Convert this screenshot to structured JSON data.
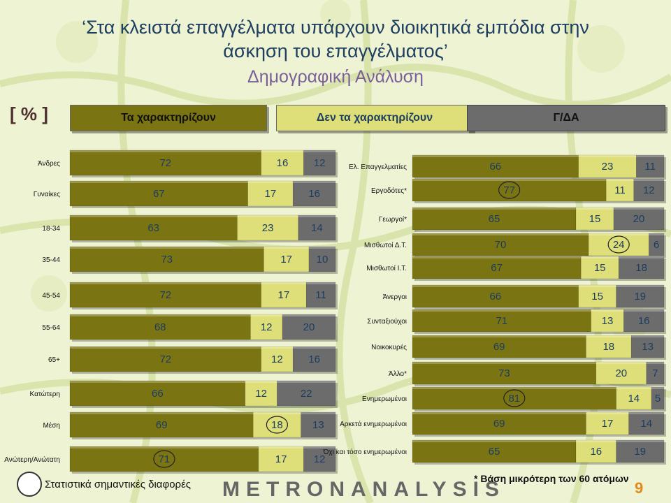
{
  "title": {
    "line1": "‘Στα κλειστά επαγγέλματα υπάρχουν διοικητικά εμπόδια στην",
    "line2": "άσκηση του επαγγέλματος’",
    "subtitle": "Δημογραφική Ανάλυση"
  },
  "percent_label": "[ % ]",
  "legend": {
    "a": "Τα χαρακτηρίζουν",
    "b": "Δεν τα χαρακτηρίζουν",
    "c": "Γ/ΔΑ"
  },
  "colors": {
    "series_a": "#7b7412",
    "series_b": "#dedf78",
    "series_c": "#6c6c6c",
    "value_text": "#1c3c61",
    "page_number": "#e08a1c"
  },
  "stat_legend": "Στατιστικά σημαντικές διαφορές",
  "logo": "METRONANALYSIS",
  "footnote": "* Βάση μικρότερη των 60 ατόμων",
  "page_number": "9",
  "chart_data": [
    {
      "type": "bar",
      "orientation": "horizontal",
      "stacked": true,
      "series": [
        "Τα χαρακτηρίζουν",
        "Δεν τα χαρακτηρίζουν",
        "Γ/ΔΑ"
      ],
      "categories": [
        "Άνδρες",
        "Γυναίκες",
        "18-34",
        "35-44",
        "45-54",
        "55-64",
        "65+",
        "Κατώτερη",
        "Μέση",
        "Ανώτερη/Ανώτατη"
      ],
      "values": [
        [
          72,
          16,
          12
        ],
        [
          67,
          17,
          16
        ],
        [
          63,
          23,
          14
        ],
        [
          73,
          17,
          10
        ],
        [
          72,
          17,
          11
        ],
        [
          68,
          12,
          20
        ],
        [
          72,
          12,
          16
        ],
        [
          66,
          12,
          22
        ],
        [
          69,
          18,
          13
        ],
        [
          71,
          17,
          12
        ]
      ],
      "circled": [
        {
          "category": "Μέση",
          "series": 1
        },
        {
          "category": "Ανώτερη/Ανώτατη",
          "series": 0
        }
      ]
    },
    {
      "type": "bar",
      "orientation": "horizontal",
      "stacked": true,
      "series": [
        "Τα χαρακτηρίζουν",
        "Δεν τα χαρακτηρίζουν",
        "Γ/ΔΑ"
      ],
      "categories": [
        "Ελ. Επαγγελματίες",
        "Εργοδότες*",
        "Γεωργοί*",
        "Μισθωτοί Δ.Τ.",
        "Μισθωτοί Ι.Τ.",
        "Άνεργοι",
        "Συνταξιούχοι",
        "Νοικοκυρές",
        "Άλλο*",
        "Ενημερωμένοι",
        "Αρκετά ενημερωμένοι",
        "Όχι και τόσο ενημερωμένοι"
      ],
      "values": [
        [
          66,
          23,
          11
        ],
        [
          77,
          11,
          12
        ],
        [
          65,
          15,
          20
        ],
        [
          70,
          24,
          6
        ],
        [
          67,
          15,
          18
        ],
        [
          66,
          15,
          19
        ],
        [
          71,
          13,
          16
        ],
        [
          69,
          18,
          13
        ],
        [
          73,
          20,
          7
        ],
        [
          81,
          14,
          5
        ],
        [
          69,
          17,
          14
        ],
        [
          65,
          16,
          19
        ]
      ],
      "circled": [
        {
          "category": "Εργοδότες*",
          "series": 0
        },
        {
          "category": "Μισθωτοί Δ.Τ.",
          "series": 1
        },
        {
          "category": "Ενημερωμένοι",
          "series": 0
        }
      ]
    }
  ]
}
